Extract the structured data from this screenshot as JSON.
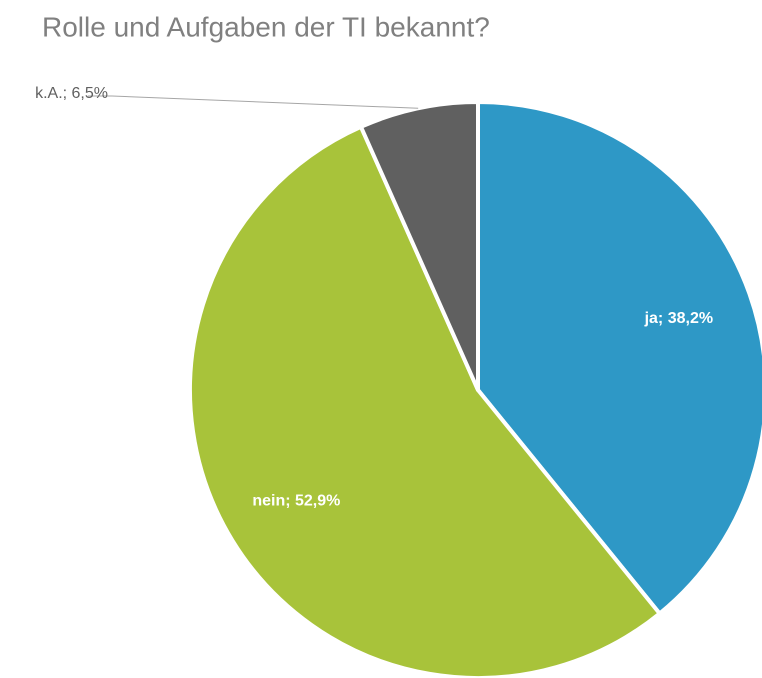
{
  "chart_data": {
    "type": "pie",
    "title": "Rolle und Aufgaben der TI bekannt?",
    "categories": [
      "ja",
      "nein",
      "k.A."
    ],
    "values": [
      38.2,
      52.9,
      6.5
    ],
    "value_labels": [
      "ja; 38,2%",
      "nein; 52,9%",
      "k.A.; 6,5%"
    ],
    "colors": [
      "#2e98c6",
      "#a8c33a",
      "#606060"
    ]
  }
}
